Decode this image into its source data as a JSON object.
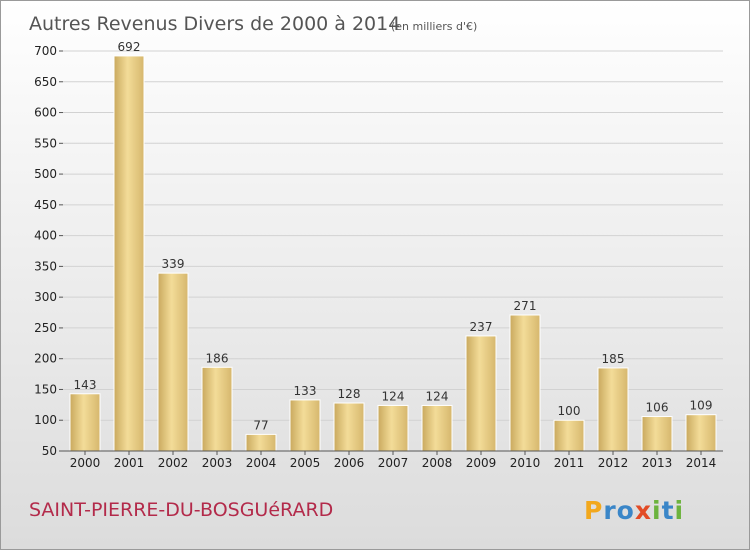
{
  "chart_data": {
    "type": "bar",
    "title": "Autres Revenus Divers de 2000 à 2014",
    "subtitle": "(en milliers d'€)",
    "categories": [
      "2000",
      "2001",
      "2002",
      "2003",
      "2004",
      "2005",
      "2006",
      "2007",
      "2008",
      "2009",
      "2010",
      "2011",
      "2012",
      "2013",
      "2014"
    ],
    "values": [
      143,
      692,
      339,
      186,
      77,
      133,
      128,
      124,
      124,
      237,
      271,
      100,
      185,
      106,
      109
    ],
    "ylim": [
      50,
      700
    ],
    "yticks": [
      50,
      100,
      150,
      200,
      250,
      300,
      350,
      400,
      450,
      500,
      550,
      600,
      650,
      700
    ],
    "grid": true,
    "bar_color": "#e8c873"
  },
  "footer": {
    "commune": "SAINT-PIERRE-DU-BOSGUéRARD",
    "brand": "Proxiti"
  }
}
